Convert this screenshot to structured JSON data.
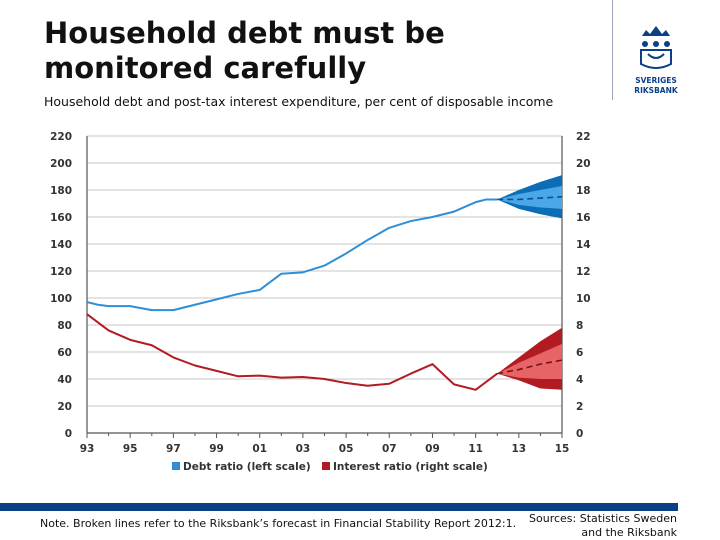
{
  "header": {
    "title": "Household debt must be monitored carefully",
    "subtitle": "Household debt and post-tax interest expenditure, per cent of disposable income"
  },
  "logo": {
    "line1": "SVERIGES",
    "line2": "RIKSBANK"
  },
  "footer": {
    "note": "Note. Broken lines refer to the Riksbank’s forecast in  Financial Stability Report 2012:1.",
    "sources_line1": "Sources: Statistics Sweden",
    "sources_line2": "and the Riksbank"
  },
  "colors": {
    "debt": "#2e8fd6",
    "debt_fan_outer": "#0b6db5",
    "debt_fan_inner": "#4aa8e8",
    "interest": "#b31b23",
    "interest_fan_outer": "#b31b23",
    "interest_fan_inner": "#e66466",
    "brand": "#0b3f86",
    "grid": "#c9c9c9"
  },
  "chart_data": {
    "type": "line",
    "xlim": [
      1993,
      2015
    ],
    "ylim_left": [
      0,
      220
    ],
    "ylim_right": [
      0,
      22
    ],
    "x_ticks": [
      1993,
      1995,
      1997,
      1999,
      2001,
      2003,
      2005,
      2007,
      2009,
      2011,
      2013,
      2015
    ],
    "x_tick_labels": [
      "93",
      "95",
      "97",
      "99",
      "01",
      "03",
      "05",
      "07",
      "09",
      "11",
      "13",
      "15"
    ],
    "left_ticks": [
      "0",
      "20",
      "40",
      "60",
      "80",
      "100",
      "120",
      "140",
      "160",
      "180",
      "200",
      "220"
    ],
    "right_ticks": [
      "0",
      "2",
      "4",
      "6",
      "8",
      "10",
      "12",
      "14",
      "16",
      "18",
      "20",
      "22"
    ],
    "grid": "horizontal",
    "legend_position": "bottom",
    "series": [
      {
        "name": "Debt ratio (left scale)",
        "axis": "left",
        "x": [
          1993,
          1993.5,
          1994,
          1995,
          1996,
          1997,
          1998,
          1999,
          2000,
          2001,
          2002,
          2003,
          2004,
          2005,
          2006,
          2007,
          2008,
          2009,
          2010,
          2011,
          2011.5,
          2012
        ],
        "values": [
          97,
          95,
          94,
          94,
          91,
          91,
          95,
          99,
          103,
          106,
          118,
          119,
          124,
          133,
          143,
          152,
          157,
          160,
          164,
          171,
          173,
          173
        ],
        "forecast": {
          "x": [
            2012,
            2013,
            2014,
            2015
          ],
          "central": [
            173,
            173,
            174,
            175
          ],
          "inner_upper": [
            173,
            177,
            180,
            183
          ],
          "inner_lower": [
            173,
            169,
            167,
            166
          ],
          "outer_upper": [
            173,
            180,
            186,
            191
          ],
          "outer_lower": [
            173,
            166,
            162,
            159
          ]
        }
      },
      {
        "name": "Interest ratio (right scale)",
        "axis": "right",
        "x": [
          1993,
          1993.5,
          1994,
          1995,
          1996,
          1997,
          1998,
          1999,
          2000,
          2001,
          2002,
          2003,
          2004,
          2005,
          2006,
          2007,
          2008,
          2009,
          2010,
          2011,
          2012
        ],
        "values": [
          8.8,
          8.2,
          7.6,
          6.9,
          6.5,
          5.6,
          5.0,
          4.6,
          4.2,
          4.25,
          4.1,
          4.15,
          4.0,
          3.7,
          3.5,
          3.65,
          4.4,
          5.1,
          3.6,
          3.2,
          4.4
        ],
        "forecast": {
          "x": [
            2012,
            2013,
            2014,
            2015
          ],
          "central": [
            4.4,
            4.7,
            5.1,
            5.4
          ],
          "inner_upper": [
            4.4,
            5.2,
            5.9,
            6.6
          ],
          "inner_lower": [
            4.4,
            4.1,
            4.0,
            4.0
          ],
          "outer_upper": [
            4.4,
            5.6,
            6.8,
            7.8
          ],
          "outer_lower": [
            4.4,
            3.9,
            3.3,
            3.2
          ]
        }
      }
    ]
  }
}
